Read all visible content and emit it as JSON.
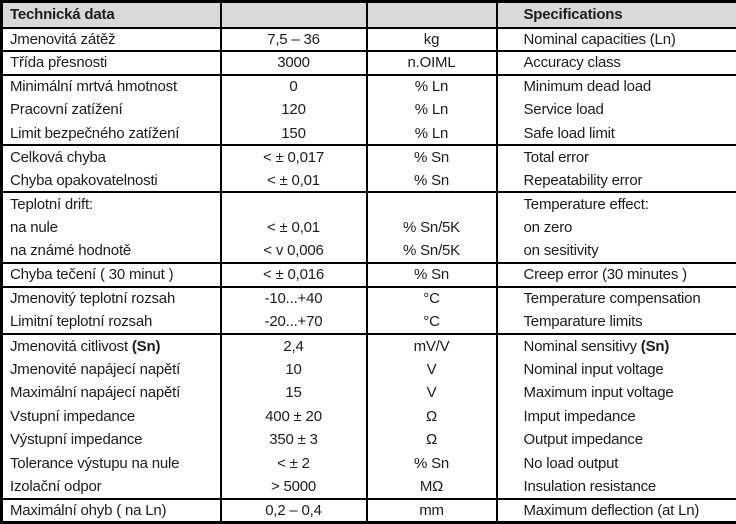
{
  "colors": {
    "header_background": "#d9d9d9",
    "border": "#000000",
    "text": "#1c1c1c"
  },
  "table": {
    "header": {
      "czech_title": "Technická data",
      "value_column_title": "",
      "unit_column_title": "",
      "english_title": "Specifications"
    },
    "rows": [
      {
        "label_cs": "Jmenovitá zátěž",
        "value": "7,5 – 36",
        "unit": "kg",
        "label_en": "Nominal capacities (Ln)",
        "group_start": true
      },
      {
        "label_cs": "Třída přesnosti",
        "value": "3000",
        "unit": "n.OIML",
        "label_en": "Accuracy class",
        "group_start": true
      },
      {
        "label_cs": "Minimální mrtvá hmotnost",
        "value": "0",
        "unit": "% Ln",
        "label_en": "Minimum dead load",
        "group_start": true
      },
      {
        "label_cs": "Pracovní zatížení",
        "value": "120",
        "unit": "% Ln",
        "label_en": "Service load",
        "group_start": false
      },
      {
        "label_cs": "Limit bezpečného zatížení",
        "value": "150",
        "unit": "% Ln",
        "label_en": "Safe load limit",
        "group_start": false
      },
      {
        "label_cs": "Celková chyba",
        "value": "< ± 0,017",
        "unit": "% Sn",
        "label_en": "Total error",
        "group_start": true
      },
      {
        "label_cs": "Chyba opakovatelnosti",
        "value": "< ± 0,01",
        "unit": "% Sn",
        "label_en": "Repeatability error",
        "group_start": false
      },
      {
        "label_cs": "Teplotní drift:",
        "value": "",
        "unit": "",
        "label_en": "Temperature effect:",
        "group_start": true
      },
      {
        "label_cs": "na nule",
        "value": "< ± 0,01",
        "unit": "% Sn/5K",
        "label_en": "on zero",
        "group_start": false
      },
      {
        "label_cs": "na známé hodnotě",
        "value": "< v 0,006",
        "unit": "% Sn/5K",
        "label_en": "on sesitivity",
        "group_start": false
      },
      {
        "label_cs": "Chyba tečení ( 30 minut )",
        "value": "< ± 0,016",
        "unit": "% Sn",
        "label_en": "Creep error (30 minutes )",
        "group_start": true
      },
      {
        "label_cs": "Jmenovitý teplotní rozsah",
        "value": "-10...+40",
        "unit": "°C",
        "label_en": "Temperature compensation",
        "group_start": true
      },
      {
        "label_cs": "Limitní teplotní rozsah",
        "value": "-20...+70",
        "unit": "°C",
        "label_en": "Temparature limits",
        "group_start": false
      },
      {
        "label_cs": "Jmenovitá citlivost ",
        "label_cs_bold": "(Sn)",
        "value": "2,4",
        "unit": "mV/V",
        "label_en": "Nominal sensitivy ",
        "label_en_bold": "(Sn)",
        "group_start": true
      },
      {
        "label_cs": "Jmenovité napájecí napětí",
        "value": "10",
        "unit": "V",
        "label_en": "Nominal input voltage",
        "group_start": false
      },
      {
        "label_cs": "Maximální napájecí napětí",
        "value": "15",
        "unit": "V",
        "label_en": "Maximum input voltage",
        "group_start": false
      },
      {
        "label_cs": "Vstupní impedance",
        "value": "400 ± 20",
        "unit": "Ω",
        "label_en": "Imput impedance",
        "group_start": false
      },
      {
        "label_cs": "Výstupní impedance",
        "value": "350 ± 3",
        "unit": "Ω",
        "label_en": "Output impedance",
        "group_start": false
      },
      {
        "label_cs": "Tolerance výstupu na nule",
        "value": "< ± 2",
        "unit": "% Sn",
        "label_en": "No load output",
        "group_start": false
      },
      {
        "label_cs": "Izolační odpor",
        "value": "> 5000",
        "unit": "MΩ",
        "label_en": "Insulation resistance",
        "group_start": false
      },
      {
        "label_cs": "Maximální ohyb ( na Ln)",
        "value": "0,2 – 0,4",
        "unit": "mm",
        "label_en": "Maximum deflection (at Ln)",
        "group_start": true
      }
    ]
  }
}
